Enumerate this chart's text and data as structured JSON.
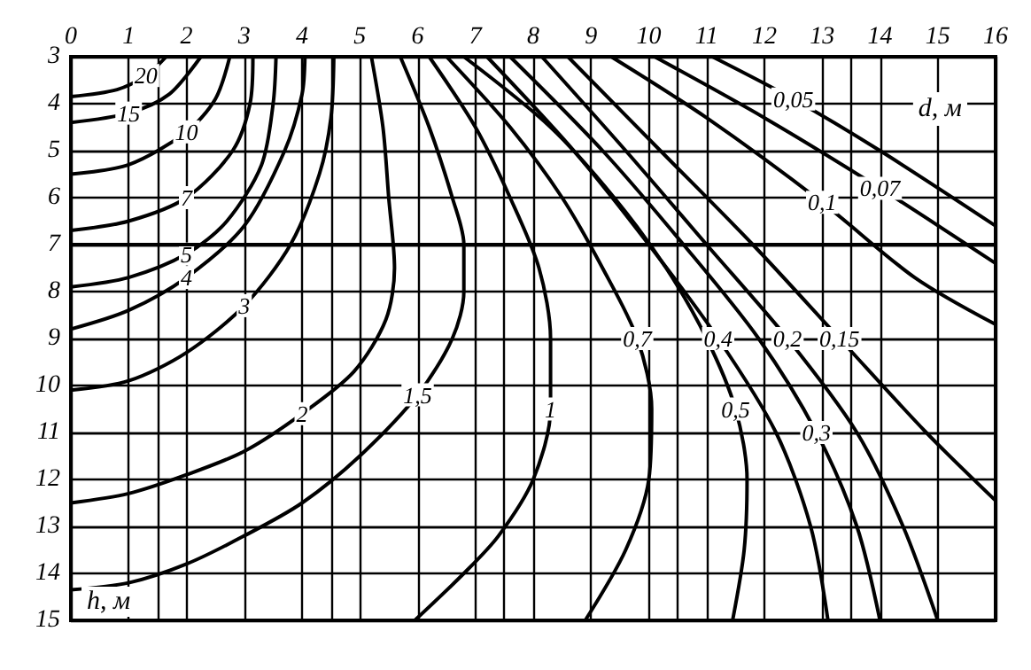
{
  "chart_data": {
    "type": "line",
    "xlabel": "d, м",
    "ylabel": "h, м",
    "xlim": [
      0,
      16
    ],
    "xticks": [
      0,
      1,
      2,
      3,
      4,
      5,
      6,
      7,
      8,
      9,
      10,
      11,
      12,
      13,
      14,
      15,
      16
    ],
    "ylim": [
      15,
      3
    ],
    "yticks": [
      3,
      4,
      5,
      6,
      7,
      8,
      9,
      10,
      11,
      12,
      13,
      14,
      15
    ],
    "grid": true,
    "legend": false,
    "marker": "none",
    "ref_lines": [
      {
        "axis": "y",
        "value": 7,
        "color": "#000000"
      }
    ],
    "series": [
      {
        "name": "20",
        "color": "#000000",
        "x": [
          0,
          0.8,
          1.3,
          1.65
        ],
        "values": [
          3.85,
          3.7,
          3.4,
          3
        ]
      },
      {
        "name": "15",
        "color": "#000000",
        "x": [
          0,
          1,
          1.7,
          2.25
        ],
        "values": [
          4.4,
          4.2,
          3.8,
          3
        ]
      },
      {
        "name": "10",
        "color": "#000000",
        "x": [
          0,
          1,
          2,
          2.5,
          2.75
        ],
        "values": [
          5.5,
          5.3,
          4.6,
          3.9,
          3
        ]
      },
      {
        "name": "7",
        "color": "#000000",
        "x": [
          0,
          1,
          2,
          2.8,
          3.1,
          3.15
        ],
        "values": [
          6.7,
          6.5,
          6,
          5,
          4,
          3
        ]
      },
      {
        "name": "5",
        "color": "#000000",
        "x": [
          0,
          1,
          2,
          2.7,
          3.3,
          3.5,
          3.55
        ],
        "values": [
          7.9,
          7.7,
          7.2,
          6.5,
          5.3,
          4,
          3
        ]
      },
      {
        "name": "4",
        "color": "#000000",
        "x": [
          0,
          1,
          2,
          3,
          3.7,
          4,
          4.05
        ],
        "values": [
          8.8,
          8.4,
          7.7,
          6.6,
          5,
          3.8,
          3
        ]
      },
      {
        "name": "3",
        "color": "#000000",
        "x": [
          0,
          1,
          2,
          3,
          3.8,
          4.3,
          4.5,
          4.55
        ],
        "values": [
          10.1,
          9.9,
          9.3,
          8.3,
          7,
          5.5,
          4.3,
          3
        ]
      },
      {
        "name": "2",
        "color": "#000000",
        "x": [
          0,
          1,
          2,
          3,
          4,
          4.9,
          5.45,
          5.6,
          5.5,
          5.4,
          5.2
        ],
        "values": [
          12.5,
          12.3,
          11.9,
          11.4,
          10.6,
          9.7,
          8.6,
          7.5,
          6,
          4.5,
          3
        ]
      },
      {
        "name": "1,5",
        "color": "#000000",
        "x": [
          0,
          1,
          2,
          3,
          4,
          5,
          6,
          6.6,
          6.8,
          6.8,
          6.6,
          6.2,
          5.7
        ],
        "values": [
          14.35,
          14.2,
          13.8,
          13.2,
          12.5,
          11.5,
          10.2,
          9,
          8,
          7,
          6,
          4.5,
          3
        ]
      },
      {
        "name": "1",
        "color": "#000000",
        "x": [
          5.95,
          6.8,
          7.4,
          8,
          8.3,
          8.3,
          8.1,
          7.6,
          7,
          6.2
        ],
        "values": [
          15,
          14,
          13.2,
          12,
          10.5,
          9,
          7.5,
          6,
          4.5,
          3
        ]
      },
      {
        "name": "0,7",
        "color": "#000000",
        "x": [
          8.9,
          9.6,
          10,
          10.05,
          9.8,
          9.2,
          8.5,
          7.6,
          6.5
        ],
        "values": [
          15,
          13.5,
          12,
          10.5,
          9,
          7.5,
          6,
          4.5,
          3
        ]
      },
      {
        "name": "0,5",
        "color": "#000000",
        "x": [
          11.45,
          11.65,
          11.7,
          11.5,
          11,
          10.3,
          9.4,
          8.3,
          6.8
        ],
        "values": [
          15,
          13.5,
          12,
          10.5,
          9,
          7.5,
          6,
          4.5,
          3
        ]
      },
      {
        "name": "0,4",
        "color": "#000000",
        "x": [
          13.1,
          12.8,
          12.2,
          11.2,
          10,
          8.7,
          7.2
        ],
        "values": [
          15,
          13,
          11,
          9,
          7,
          5,
          3
        ]
      },
      {
        "name": "0,3",
        "color": "#000000",
        "x": [
          14,
          13.6,
          12.9,
          11.9,
          10.6,
          9.2,
          7.6
        ],
        "values": [
          15,
          13,
          11,
          9,
          7,
          5,
          3
        ]
      },
      {
        "name": "0,2",
        "color": "#000000",
        "x": [
          15,
          14.4,
          13.6,
          12.4,
          11,
          9.6,
          8.15
        ],
        "values": [
          15,
          13,
          11,
          9,
          7,
          5,
          3
        ]
      },
      {
        "name": "0,15",
        "color": "#000000",
        "x": [
          16,
          14.8,
          13.3,
          11.8,
          10.2,
          8.6
        ],
        "values": [
          12.45,
          11,
          9,
          7,
          5,
          3
        ]
      },
      {
        "name": "0,1",
        "color": "#000000",
        "x": [
          16,
          14.6,
          13,
          11,
          9.35
        ],
        "values": [
          8.7,
          7.7,
          6.1,
          4.3,
          3
        ]
      },
      {
        "name": "0,07",
        "color": "#000000",
        "x": [
          16,
          14,
          12,
          10.1
        ],
        "values": [
          7.4,
          5.8,
          4.3,
          3
        ]
      },
      {
        "name": "0,05",
        "color": "#000000",
        "x": [
          16,
          14,
          12.5,
          11.1
        ],
        "values": [
          6.6,
          5,
          3.9,
          3
        ]
      }
    ]
  }
}
